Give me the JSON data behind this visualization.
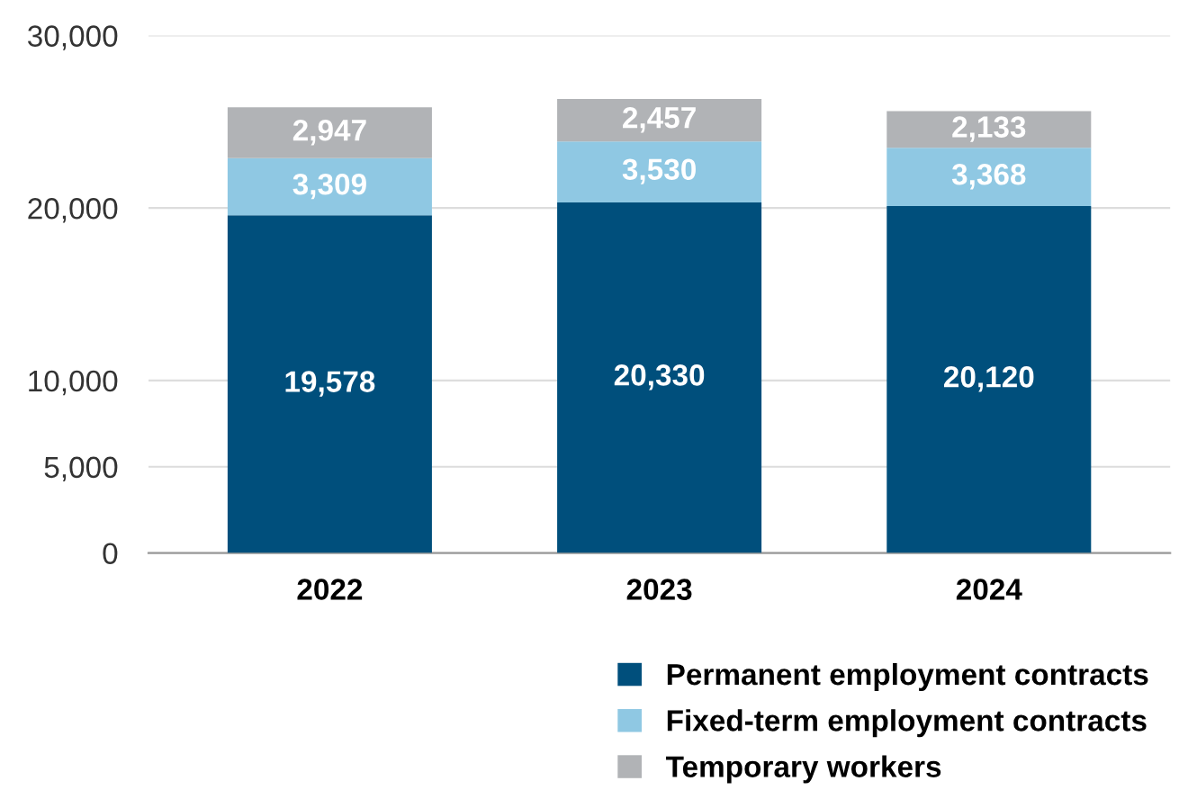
{
  "chart_data": {
    "type": "bar",
    "stacked": true,
    "categories": [
      "2022",
      "2023",
      "2024"
    ],
    "series": [
      {
        "name": "Permanent employment contracts",
        "color": "#004f7c",
        "values": [
          19578,
          20330,
          20120
        ],
        "value_labels": [
          "19,578",
          "20,330",
          "20,120"
        ]
      },
      {
        "name": "Fixed-term employment contracts",
        "color": "#8fc8e3",
        "values": [
          3309,
          3530,
          3368
        ],
        "value_labels": [
          "3,309",
          "3,530",
          "3,368"
        ]
      },
      {
        "name": "Temporary workers",
        "color": "#b1b3b6",
        "values": [
          2947,
          2457,
          2133
        ],
        "value_labels": [
          "2,947",
          "2,457",
          "2,133"
        ]
      }
    ],
    "ylim": [
      0,
      30000
    ],
    "yticks": [
      {
        "value": 0,
        "label": "0"
      },
      {
        "value": 5000,
        "label": "5,000"
      },
      {
        "value": 10000,
        "label": "10,000"
      },
      {
        "value": 20000,
        "label": "20,000"
      },
      {
        "value": 30000,
        "label": "30,000"
      }
    ],
    "grid": "y",
    "legend": "bottom right"
  }
}
